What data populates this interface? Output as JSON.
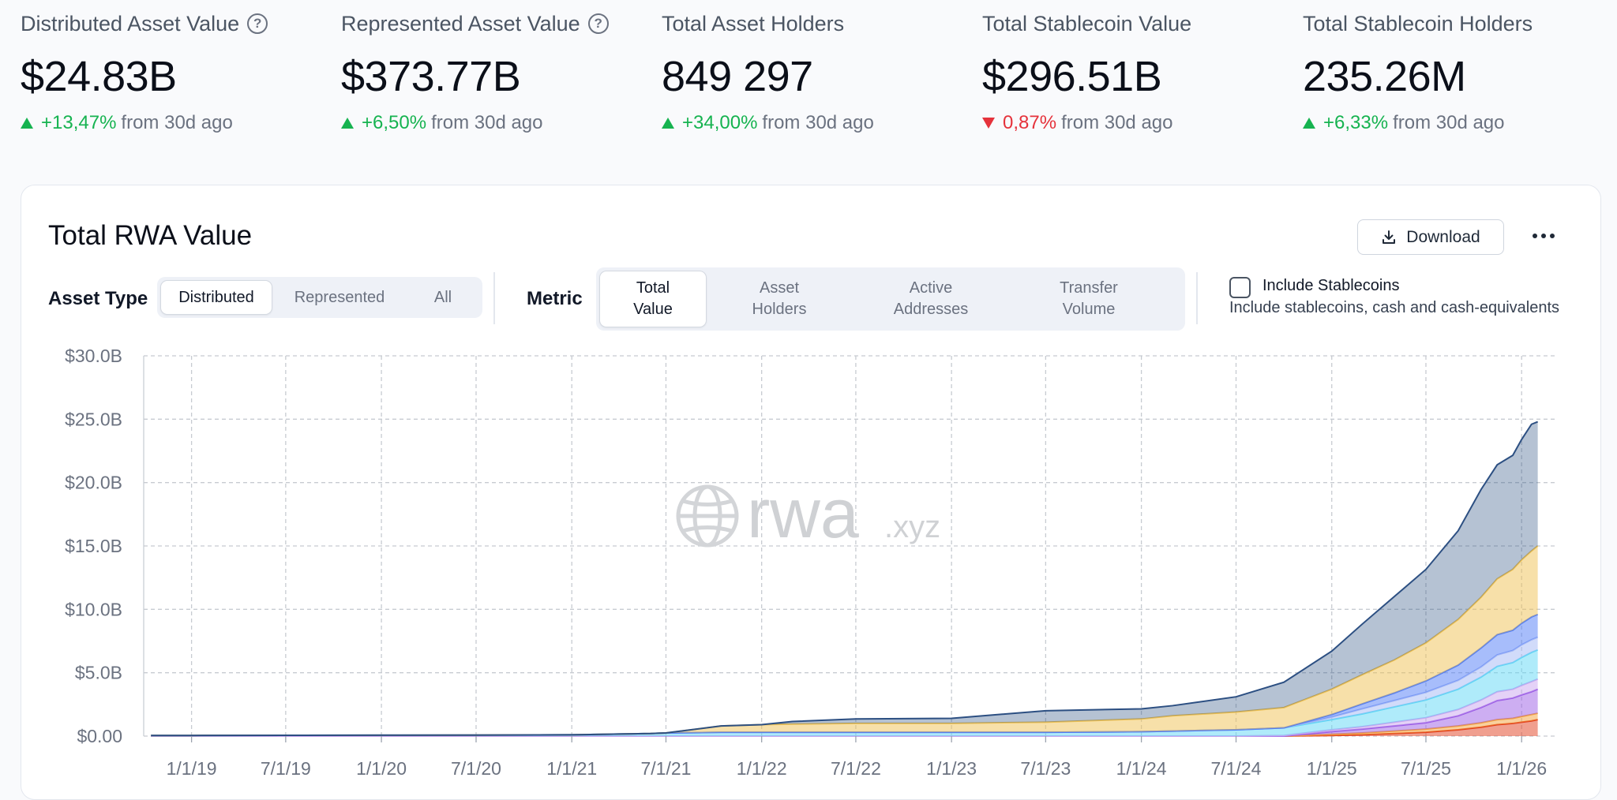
{
  "stats": [
    {
      "label": "Distributed Asset Value",
      "value": "$24.83B",
      "direction": "up",
      "change": "+13,47%",
      "suffix": "from 30d ago",
      "help": "?"
    },
    {
      "label": "Represented Asset Value",
      "value": "$373.77B",
      "direction": "up",
      "change": "+6,50%",
      "suffix": "from 30d ago",
      "help": "?"
    },
    {
      "label": "Total Asset Holders",
      "value": "849 297",
      "direction": "up",
      "change": "+34,00%",
      "suffix": "from 30d ago"
    },
    {
      "label": "Total Stablecoin Value",
      "value": "$296.51B",
      "direction": "down",
      "change": "0,87%",
      "suffix": "from 30d ago"
    },
    {
      "label": "Total Stablecoin Holders",
      "value": "235.26M",
      "direction": "up",
      "change": "+6,33%",
      "suffix": "from 30d ago"
    }
  ],
  "card": {
    "title": "Total RWA Value",
    "download_label": "Download",
    "asset_type": {
      "label": "Asset Type",
      "options": [
        "Distributed",
        "Represented",
        "All"
      ],
      "selected": "Distributed"
    },
    "metric": {
      "label": "Metric",
      "options": [
        [
          "Total",
          "Value"
        ],
        [
          "Asset",
          "Holders"
        ],
        [
          "Active",
          "Addresses"
        ],
        [
          "Transfer",
          "Volume"
        ]
      ],
      "selected": 0
    },
    "stablecoins": {
      "checked": false,
      "label": "Include Stablecoins",
      "description": "Include stablecoins, cash and cash-equivalents"
    }
  },
  "watermark": {
    "main": "rwa",
    "suffix": ".xyz",
    "icon": "globe-icon"
  },
  "colors": {
    "up": "#16b350",
    "down": "#e5323b",
    "grid": "#c7cbd1"
  },
  "chart_data": {
    "type": "area",
    "stacked": true,
    "y_tick_labels": [
      "$0.00",
      "$5.0B",
      "$10.0B",
      "$15.0B",
      "$20.0B",
      "$25.0B",
      "$30.0B"
    ],
    "ylim_billions": [
      0,
      30
    ],
    "x_tick_labels": [
      "1/1/19",
      "7/1/19",
      "1/1/20",
      "7/1/20",
      "1/1/21",
      "7/1/21",
      "1/1/22",
      "7/1/22",
      "1/1/23",
      "7/1/23",
      "1/1/24",
      "7/1/24",
      "1/1/25",
      "7/1/25",
      "1/1/26"
    ],
    "grid": true,
    "series_colors": [
      "#e2401f",
      "#f4a23c",
      "#9b5de5",
      "#c9a6f0",
      "#5fd8f5",
      "#a3b7f5",
      "#4f7cf7",
      "#efc254",
      "#2c4f82"
    ],
    "x_dates": [
      "2018-10-15",
      "2019-01-01",
      "2019-07-01",
      "2020-01-01",
      "2020-07-01",
      "2021-01-01",
      "2021-06-01",
      "2021-07-01",
      "2021-10-15",
      "2022-01-01",
      "2022-03-01",
      "2022-07-01",
      "2023-01-01",
      "2023-07-01",
      "2024-01-01",
      "2024-03-01",
      "2024-07-01",
      "2024-10-01",
      "2025-01-01",
      "2025-03-01",
      "2025-05-01",
      "2025-07-01",
      "2025-09-01",
      "2025-10-15",
      "2025-11-15",
      "2025-12-15",
      "2026-01-01",
      "2026-01-20",
      "2026-02-01"
    ],
    "series": [
      {
        "values": [
          0,
          0,
          0,
          0,
          0,
          0,
          0,
          0,
          0,
          0,
          0,
          0,
          0,
          0,
          0,
          0,
          0,
          0,
          0.05,
          0.1,
          0.2,
          0.3,
          0.5,
          0.7,
          0.9,
          1.0,
          1.1,
          1.2,
          1.3
        ]
      },
      {
        "values": [
          0,
          0,
          0,
          0,
          0,
          0,
          0,
          0,
          0,
          0,
          0,
          0,
          0,
          0,
          0,
          0,
          0,
          0,
          0.1,
          0.15,
          0.2,
          0.25,
          0.3,
          0.35,
          0.4,
          0.4,
          0.45,
          0.5,
          0.5
        ]
      },
      {
        "values": [
          0,
          0,
          0,
          0,
          0,
          0,
          0,
          0,
          0,
          0,
          0,
          0,
          0,
          0,
          0,
          0,
          0,
          0,
          0.2,
          0.3,
          0.4,
          0.5,
          0.8,
          1.2,
          1.5,
          1.6,
          1.7,
          1.8,
          1.9
        ]
      },
      {
        "values": [
          0,
          0,
          0,
          0,
          0,
          0,
          0,
          0,
          0,
          0,
          0,
          0,
          0,
          0,
          0,
          0,
          0,
          0.05,
          0.15,
          0.2,
          0.3,
          0.4,
          0.5,
          0.6,
          0.7,
          0.7,
          0.75,
          0.8,
          0.8
        ]
      },
      {
        "values": [
          0.05,
          0.05,
          0.06,
          0.07,
          0.08,
          0.1,
          0.2,
          0.25,
          0.3,
          0.3,
          0.3,
          0.3,
          0.3,
          0.3,
          0.35,
          0.4,
          0.5,
          0.6,
          0.8,
          1.0,
          1.2,
          1.4,
          1.6,
          1.8,
          2.0,
          2.1,
          2.2,
          2.3,
          2.3
        ]
      },
      {
        "values": [
          0,
          0,
          0,
          0,
          0,
          0,
          0,
          0,
          0,
          0,
          0,
          0,
          0,
          0,
          0,
          0,
          0,
          0,
          0.2,
          0.4,
          0.5,
          0.6,
          0.7,
          0.8,
          0.9,
          0.95,
          1.0,
          1.0,
          1.0
        ]
      },
      {
        "values": [
          0,
          0,
          0,
          0,
          0,
          0,
          0,
          0,
          0,
          0,
          0,
          0,
          0,
          0,
          0,
          0,
          0,
          0,
          0.2,
          0.4,
          0.6,
          0.9,
          1.2,
          1.5,
          1.6,
          1.6,
          1.7,
          1.8,
          1.8
        ]
      },
      {
        "values": [
          0,
          0,
          0,
          0,
          0,
          0,
          0,
          0,
          0.5,
          0.6,
          0.65,
          0.7,
          0.7,
          0.8,
          1.0,
          1.2,
          1.4,
          1.6,
          2.0,
          2.3,
          2.6,
          3.0,
          3.6,
          4.0,
          4.4,
          4.8,
          5.0,
          5.2,
          5.4
        ]
      },
      {
        "values": [
          0,
          0,
          0,
          0,
          0,
          0,
          0,
          0,
          0,
          0,
          0.2,
          0.35,
          0.4,
          0.9,
          0.8,
          0.8,
          1.2,
          2.0,
          3.0,
          4.0,
          5.0,
          5.8,
          7.0,
          8.5,
          9.0,
          9.0,
          9.5,
          10.0,
          9.8
        ]
      }
    ]
  }
}
